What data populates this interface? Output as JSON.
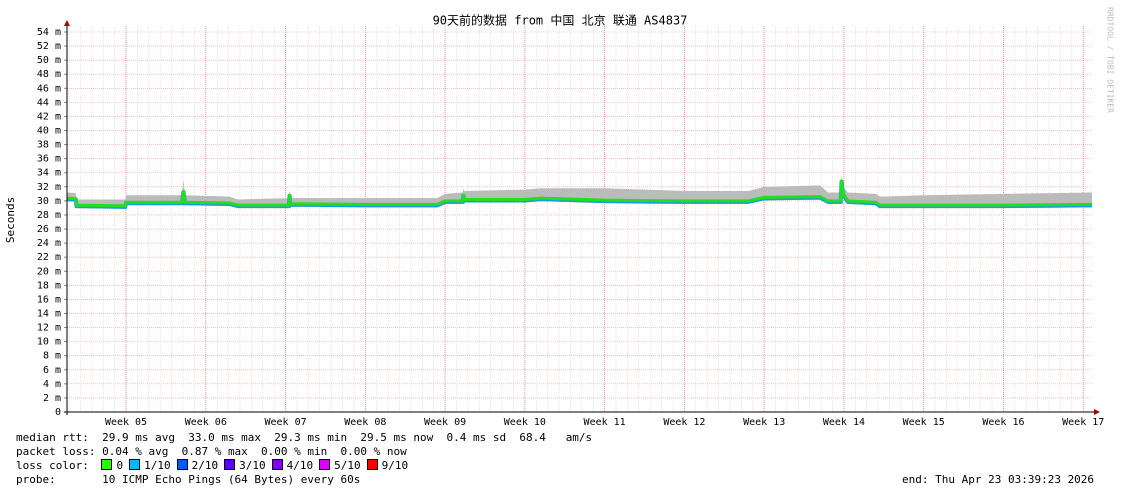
{
  "chart_data": {
    "type": "smoke",
    "title": "90天前的数据 from  中国 北京 联通 AS4837",
    "y_label": "Seconds",
    "watermark": "RRDTOOL / TOBI OETIKER",
    "grid": true,
    "line_color": "#22dd22",
    "smoke_color": "#bbbbbb",
    "ylim": [
      0,
      0.054
    ],
    "yticks": [
      0,
      {
        "value": 0.002,
        "label": "2 m"
      },
      {
        "value": 0.004,
        "label": "4 m"
      },
      {
        "value": 0.006,
        "label": "6 m"
      },
      {
        "value": 0.008,
        "label": "8 m"
      },
      {
        "value": 0.01,
        "label": "10 m"
      },
      {
        "value": 0.012,
        "label": "12 m"
      },
      {
        "value": 0.014,
        "label": "14 m"
      },
      {
        "value": 0.016,
        "label": "16 m"
      },
      {
        "value": 0.018,
        "label": "18 m"
      },
      {
        "value": 0.02,
        "label": "20 m"
      },
      {
        "value": 0.022,
        "label": "22 m"
      },
      {
        "value": 0.024,
        "label": "24 m"
      },
      {
        "value": 0.026,
        "label": "26 m"
      },
      {
        "value": 0.028,
        "label": "28 m"
      },
      {
        "value": 0.03,
        "label": "30 m"
      },
      {
        "value": 0.032,
        "label": "32 m"
      },
      {
        "value": 0.034,
        "label": "34 m"
      },
      {
        "value": 0.036,
        "label": "36 m"
      },
      {
        "value": 0.038,
        "label": "38 m"
      },
      {
        "value": 0.04,
        "label": "40 m"
      },
      {
        "value": 0.042,
        "label": "42 m"
      },
      {
        "value": 0.044,
        "label": "44 m"
      },
      {
        "value": 0.046,
        "label": "46 m"
      },
      {
        "value": 0.048,
        "label": "48 m"
      },
      {
        "value": 0.05,
        "label": "50 m"
      },
      {
        "value": 0.052,
        "label": "52 m"
      },
      {
        "value": 0.054,
        "label": "54 m"
      }
    ],
    "xlim": [
      4.26,
      17.11
    ],
    "xticks": [
      {
        "value": 5,
        "label": "Week 05"
      },
      {
        "value": 6,
        "label": "Week 06"
      },
      {
        "value": 7,
        "label": "Week 07"
      },
      {
        "value": 8,
        "label": "Week 08"
      },
      {
        "value": 9,
        "label": "Week 09"
      },
      {
        "value": 10,
        "label": "Week 10"
      },
      {
        "value": 11,
        "label": "Week 11"
      },
      {
        "value": 12,
        "label": "Week 12"
      },
      {
        "value": 13,
        "label": "Week 13"
      },
      {
        "value": 14,
        "label": "Week 14"
      },
      {
        "value": 15,
        "label": "Week 15"
      },
      {
        "value": 16,
        "label": "Week 16"
      },
      {
        "value": 17,
        "label": "Week 17"
      }
    ],
    "x": [
      4.26,
      4.37,
      4.38,
      4.99,
      5.0,
      5.7,
      5.72,
      5.74,
      6.3,
      6.4,
      7.04,
      7.05,
      7.06,
      8.0,
      8.9,
      9.0,
      9.22,
      9.23,
      9.24,
      10.0,
      10.2,
      11.0,
      12.0,
      12.8,
      13.0,
      13.7,
      13.8,
      13.96,
      13.97,
      13.99,
      14.05,
      14.4,
      14.45,
      15.0,
      16.0,
      17.11
    ],
    "values": [
      0.0304,
      0.0303,
      0.0294,
      0.0293,
      0.0298,
      0.0298,
      0.0315,
      0.0298,
      0.0297,
      0.0294,
      0.0294,
      0.031,
      0.0296,
      0.0295,
      0.0295,
      0.03,
      0.03,
      0.031,
      0.0302,
      0.0302,
      0.0304,
      0.0301,
      0.03,
      0.03,
      0.0305,
      0.0306,
      0.03,
      0.03,
      0.033,
      0.031,
      0.03,
      0.0298,
      0.0294,
      0.0294,
      0.0294,
      0.0295
    ],
    "smoke_top": [
      0.0312,
      0.0311,
      0.0302,
      0.0302,
      0.0308,
      0.0308,
      0.033,
      0.0308,
      0.0306,
      0.0302,
      0.0304,
      0.0316,
      0.0304,
      0.0304,
      0.0304,
      0.031,
      0.0312,
      0.0318,
      0.0314,
      0.0316,
      0.0318,
      0.0318,
      0.0314,
      0.0314,
      0.032,
      0.0322,
      0.0312,
      0.0312,
      0.0336,
      0.032,
      0.0312,
      0.031,
      0.0306,
      0.0308,
      0.031,
      0.0312
    ]
  },
  "stats": {
    "median_label": "median rtt:",
    "median_text": "29.9 ms avg  33.0 ms max  29.3 ms min  29.5 ms now  0.4 ms sd  68.4   am/s",
    "loss_label": "packet loss:",
    "loss_text": "0.04 % avg  0.87 % max  0.00 % min  0.00 % now",
    "color_label": "loss color:",
    "loss_colors": [
      {
        "name": "0",
        "color": "#26ff00"
      },
      {
        "name": "1/10",
        "color": "#00b8ff"
      },
      {
        "name": "2/10",
        "color": "#0059ff"
      },
      {
        "name": "3/10",
        "color": "#5e00ff"
      },
      {
        "name": "4/10",
        "color": "#7e00ff"
      },
      {
        "name": "5/10",
        "color": "#dd00ff"
      },
      {
        "name": "9/10",
        "color": "#ff0000"
      }
    ],
    "probe_label": "probe:",
    "probe_text": "10 ICMP Echo Pings (64 Bytes) every 60s",
    "end_text": "end: Thu Apr 23 03:39:23 2026"
  }
}
